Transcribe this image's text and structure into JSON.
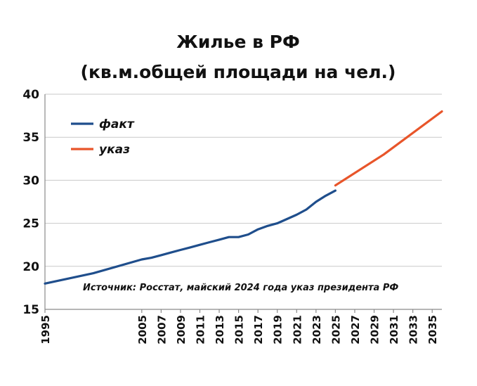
{
  "chart_data": {
    "type": "line",
    "title": "Жилье в РФ",
    "subtitle": "(кв.м.общей площади на чел.)",
    "annotation": "Источник: Росстат, майский 2024 года указ президента РФ",
    "ylim": [
      15,
      40
    ],
    "yticks": [
      15,
      20,
      25,
      30,
      35,
      40
    ],
    "xlim": [
      1995,
      2036
    ],
    "xticks": [
      1995,
      2005,
      2007,
      2009,
      2011,
      2013,
      2015,
      2017,
      2019,
      2021,
      2023,
      2025,
      2027,
      2029,
      2031,
      2033,
      2035
    ],
    "grid": true,
    "legend_position": "top-left",
    "series": [
      {
        "name": "факт",
        "color": "#1f4e8c",
        "points": [
          [
            1995,
            18.0
          ],
          [
            2000,
            19.2
          ],
          [
            2005,
            20.8
          ],
          [
            2006,
            21.0
          ],
          [
            2007,
            21.3
          ],
          [
            2008,
            21.6
          ],
          [
            2009,
            21.9
          ],
          [
            2010,
            22.2
          ],
          [
            2011,
            22.5
          ],
          [
            2012,
            22.8
          ],
          [
            2013,
            23.1
          ],
          [
            2014,
            23.4
          ],
          [
            2015,
            23.4
          ],
          [
            2016,
            23.7
          ],
          [
            2017,
            24.3
          ],
          [
            2018,
            24.7
          ],
          [
            2019,
            25.0
          ],
          [
            2020,
            25.5
          ],
          [
            2021,
            26.0
          ],
          [
            2022,
            26.6
          ],
          [
            2023,
            27.5
          ],
          [
            2024,
            28.2
          ],
          [
            2025,
            28.8
          ]
        ]
      },
      {
        "name": "указ",
        "color": "#e8552a",
        "points": [
          [
            2025,
            29.4
          ],
          [
            2030,
            33.0
          ],
          [
            2036,
            38.0
          ]
        ]
      }
    ]
  }
}
